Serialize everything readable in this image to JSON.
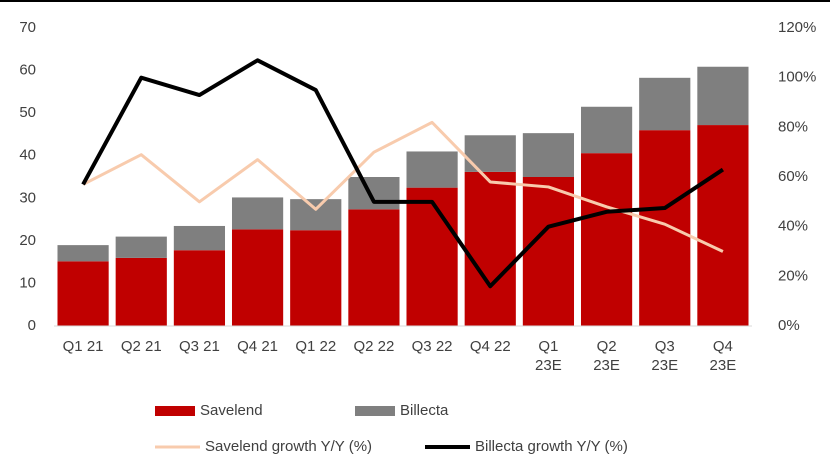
{
  "chart_data": {
    "type": "bar_line",
    "categories": [
      "Q1 21",
      "Q2 21",
      "Q3 21",
      "Q4 21",
      "Q1 22",
      "Q2 22",
      "Q3 22",
      "Q4 22",
      "Q1 23E",
      "Q2 23E",
      "Q3 23E",
      "Q4 23E"
    ],
    "series": [
      {
        "name": "Savelend",
        "color": "#c00000",
        "type": "bar",
        "values": [
          15.2,
          16,
          17.8,
          22.7,
          22.5,
          27.4,
          32.5,
          36.2,
          35,
          40.6,
          46,
          47.2
        ]
      },
      {
        "name": "Billecta",
        "color": "#7f7f7f",
        "type": "bar",
        "values": [
          3.8,
          5,
          5.7,
          7.5,
          7.3,
          7.6,
          8.5,
          8.6,
          10.3,
          10.9,
          12.3,
          13.7
        ]
      },
      {
        "name": "Savelend growth Y/Y (%)",
        "color": "#f8cbad",
        "type": "line",
        "axis": "y2",
        "values": [
          57,
          69,
          50,
          67,
          47,
          70,
          82,
          58,
          56,
          48,
          41,
          30
        ]
      },
      {
        "name": "Billecta growth Y/Y (%)",
        "color": "#000000",
        "type": "line",
        "axis": "y2",
        "values": [
          57,
          100,
          93,
          107,
          95,
          50,
          50,
          16,
          40,
          46,
          47.5,
          63
        ]
      }
    ],
    "ylim": [
      0,
      70
    ],
    "yticks": [
      0,
      10,
      20,
      30,
      40,
      50,
      60,
      70
    ],
    "y2lim": [
      0,
      120
    ],
    "y2ticks": [
      {
        "value": 0,
        "label": "0%"
      },
      {
        "value": 20,
        "label": "20%"
      },
      {
        "value": 40,
        "label": "40%"
      },
      {
        "value": 60,
        "label": "60%"
      },
      {
        "value": 80,
        "label": "80%"
      },
      {
        "value": 100,
        "label": "100%"
      },
      {
        "value": 120,
        "label": "120%"
      }
    ]
  }
}
